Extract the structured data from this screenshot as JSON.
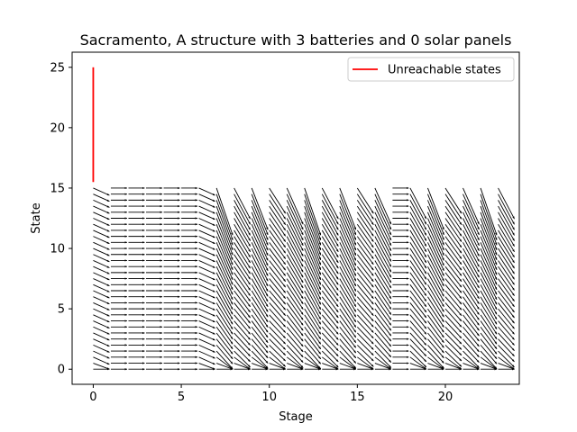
{
  "chart_data": {
    "type": "quiver",
    "title": "Sacramento, A structure with 3 batteries and 0 solar panels",
    "xlabel": "Stage",
    "ylabel": "State",
    "xlim": [
      -1.2,
      24.2
    ],
    "ylim": [
      -1.25,
      26.25
    ],
    "xticks": [
      0,
      5,
      10,
      15,
      20
    ],
    "yticks": [
      0,
      5,
      10,
      15,
      20,
      25
    ],
    "grid": false,
    "legend": {
      "location": "top-right",
      "entries": [
        {
          "label": "Unreachable states",
          "color": "#ff0000"
        }
      ]
    },
    "unreachable_states": {
      "stage": 0,
      "state_from": 15.5,
      "state_to": 25,
      "color": "#ff0000"
    },
    "quiver": {
      "stages": [
        0,
        23
      ],
      "states": [
        0,
        15
      ],
      "state_step": 0.5,
      "color": "#000000"
    }
  }
}
